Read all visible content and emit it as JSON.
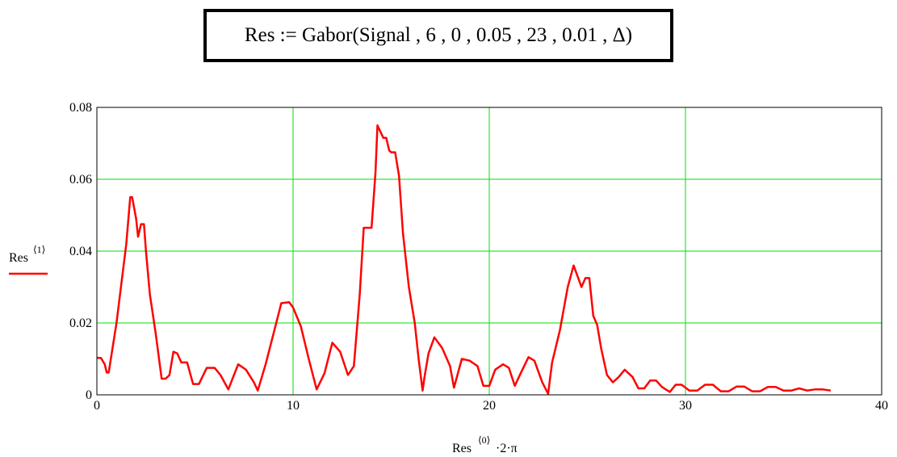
{
  "formula": {
    "text": "Res := Gabor(Signal , 6 , 0 , 0.05 , 23 , 0.01 , Δ)"
  },
  "colors": {
    "series": "#ff0000",
    "grid": "#00e000",
    "axis": "#000000"
  },
  "chart_data": {
    "type": "line",
    "xlim": [
      0,
      40
    ],
    "ylim": [
      0,
      0.08
    ],
    "grid": true,
    "x_ticks": [
      "0",
      "10",
      "20",
      "30",
      "40"
    ],
    "y_ticks": [
      "0",
      "0.02",
      "0.04",
      "0.06",
      "0.08"
    ],
    "y_tick_values": [
      0,
      0.02,
      0.04,
      0.06,
      0.08
    ],
    "x_tick_values": [
      0,
      10,
      20,
      30,
      40
    ],
    "xlabel": {
      "base": "Res",
      "sup": "⟨0⟩",
      "suffix": "·2·π"
    },
    "ylabel": {
      "base": "Res",
      "sup": "⟨1⟩"
    },
    "series": [
      {
        "x": [
          0,
          0.2,
          0.4,
          0.5,
          0.6,
          1.0,
          1.5,
          1.7,
          1.8,
          2.0,
          2.1,
          2.25,
          2.4,
          2.5,
          2.7,
          3.0,
          3.3,
          3.5,
          3.7,
          3.9,
          4.1,
          4.3,
          4.6,
          4.9,
          5.2,
          5.6,
          6.0,
          6.3,
          6.7,
          7.2,
          7.6,
          8.0,
          8.2,
          8.6,
          9.0,
          9.4,
          9.8,
          10.0,
          10.4,
          10.8,
          11.2,
          11.6,
          12.0,
          12.4,
          12.8,
          13.1,
          13.4,
          13.6,
          13.8,
          14.0,
          14.2,
          14.3,
          14.6,
          14.75,
          14.9,
          15.0,
          15.2,
          15.4,
          15.6,
          15.9,
          16.2,
          16.4,
          16.6,
          16.7,
          16.9,
          17.2,
          17.6,
          18.0,
          18.2,
          18.6,
          19.0,
          19.4,
          19.7,
          20.0,
          20.3,
          20.7,
          21.0,
          21.3,
          21.6,
          22.0,
          22.3,
          22.7,
          23.0,
          23.2,
          23.6,
          24.0,
          24.3,
          24.7,
          24.9,
          25.1,
          25.3,
          25.5,
          25.7,
          26.0,
          26.3,
          26.6,
          26.9,
          27.3,
          27.6,
          27.9,
          28.2,
          28.5,
          28.8,
          29.2,
          29.5,
          29.8,
          30.2,
          30.6,
          31.0,
          31.4,
          31.8,
          32.2,
          32.6,
          33.0,
          33.4,
          33.8,
          34.2,
          34.6,
          35.0,
          35.4,
          35.8,
          36.2,
          36.6,
          37.0,
          37.4
        ],
        "y": [
          0.0103,
          0.0103,
          0.0085,
          0.0062,
          0.0062,
          0.02,
          0.042,
          0.055,
          0.055,
          0.049,
          0.044,
          0.0475,
          0.0475,
          0.04,
          0.028,
          0.017,
          0.0045,
          0.0045,
          0.0055,
          0.012,
          0.0115,
          0.009,
          0.009,
          0.003,
          0.003,
          0.0075,
          0.0075,
          0.0055,
          0.0015,
          0.0085,
          0.007,
          0.0035,
          0.0012,
          0.0085,
          0.017,
          0.0255,
          0.0258,
          0.0243,
          0.019,
          0.01,
          0.0015,
          0.006,
          0.0145,
          0.012,
          0.0055,
          0.008,
          0.028,
          0.0465,
          0.0465,
          0.0465,
          0.062,
          0.075,
          0.0715,
          0.0715,
          0.068,
          0.0675,
          0.0675,
          0.061,
          0.045,
          0.03,
          0.02,
          0.01,
          0.0012,
          0.005,
          0.0115,
          0.016,
          0.013,
          0.008,
          0.002,
          0.01,
          0.0095,
          0.008,
          0.0025,
          0.0025,
          0.007,
          0.0085,
          0.0075,
          0.0025,
          0.006,
          0.0105,
          0.0095,
          0.0035,
          0.0003,
          0.009,
          0.018,
          0.03,
          0.036,
          0.03,
          0.0325,
          0.0325,
          0.022,
          0.0195,
          0.013,
          0.0055,
          0.0035,
          0.005,
          0.007,
          0.005,
          0.0018,
          0.0018,
          0.004,
          0.004,
          0.0022,
          0.0008,
          0.0028,
          0.0028,
          0.0012,
          0.0012,
          0.0028,
          0.0028,
          0.001,
          0.001,
          0.0023,
          0.0023,
          0.001,
          0.001,
          0.0022,
          0.0022,
          0.0012,
          0.0012,
          0.0018,
          0.0012,
          0.0015,
          0.0015,
          0.0012
        ]
      }
    ]
  }
}
